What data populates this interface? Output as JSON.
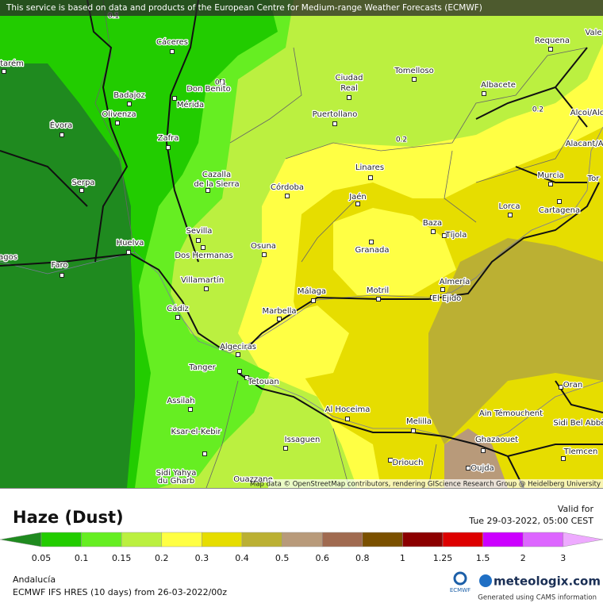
{
  "header": {
    "notice": "This service is based on data and products of the European Centre for Medium-range Weather Forecasts (ECMWF)",
    "attribution": "Map data © OpenStreetMap contributors, rendering GIScience Research Group @ Heidelberg University"
  },
  "map": {
    "cities": [
      "Cáceres",
      "Don Benito",
      "Badajoz",
      "Mérida",
      "Olivenza",
      "Évora",
      "Zafra",
      "Serpa",
      "tarém",
      "Faro",
      "agos",
      "Huelva",
      "Sevilla",
      "Dos Hermanas",
      "Villamartín",
      "Cádiz",
      "Algeciras",
      "Cazalla",
      "de la Sierra",
      "Córdoba",
      "Osuna",
      "Marbella",
      "Málaga",
      "Motril",
      "Granada",
      "Jaén",
      "Linares",
      "Ciudad",
      "Real",
      "Puertollano",
      "Tomelloso",
      "Albacete",
      "Requena",
      "Vale",
      "Alcoi/Alc",
      "Alacant/Al",
      "Murcia",
      "Tor",
      "Lorca",
      "Cartagena",
      "Baza",
      "Tíjola",
      "Almería",
      "El Ejido",
      "Melilla",
      "Al Hoceima",
      "Tetouan",
      "Tanger",
      "Assilah",
      "Ksar-el-Kebir",
      "Issaguen",
      "Driouch",
      "Oujda",
      "Ghazaouet",
      "Tlemcen",
      "Ain Témouchent",
      "Oran",
      "Sidi Bel Abbès",
      "Sidi Yahya",
      "du Gharb",
      "Ouazzane"
    ],
    "contour_labels": [
      "0.1",
      "0.1",
      "0.2",
      "0.2"
    ]
  },
  "legend": {
    "title": "Haze (Dust)",
    "valid_label": "Valid for",
    "valid_time": "Tue 29-03-2022, 05:00 CEST",
    "ticks": [
      0.05,
      0.1,
      0.15,
      0.2,
      0.3,
      0.4,
      0.5,
      0.6,
      0.8,
      1,
      1.25,
      1.5,
      2,
      3
    ],
    "colors": [
      "#1f8a1f",
      "#22cc00",
      "#66ee22",
      "#bbf040",
      "#ffff44",
      "#e6dd00",
      "#bbb033",
      "#b89a7a",
      "#a06a50",
      "#7a5000",
      "#8b0000",
      "#dd0000",
      "#cc00ff",
      "#dd66ff",
      "#eeaaff"
    ]
  },
  "footer": {
    "region": "Andalucía",
    "model": "ECMWF IFS HRES (10 days) from 26-03-2022/00z",
    "ecmwf": "ECMWF",
    "brand": "meteologix.com",
    "cams": "Generated using CAMS information"
  }
}
